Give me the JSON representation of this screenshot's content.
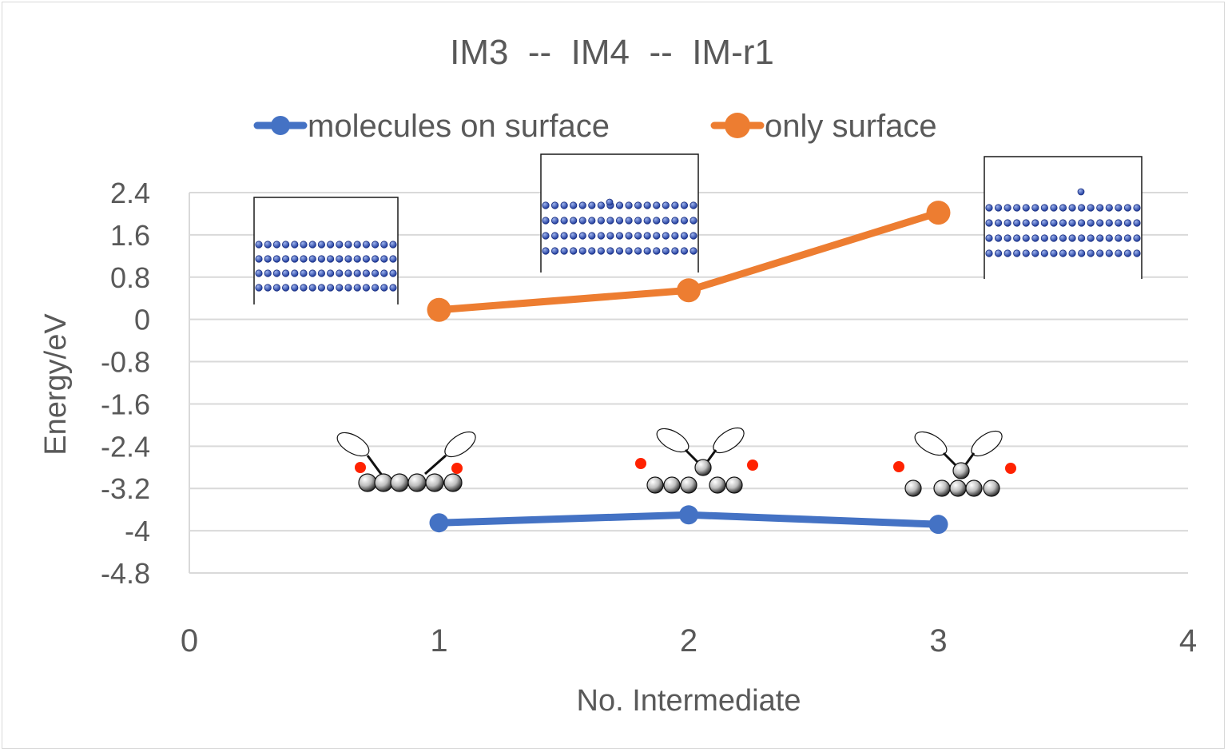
{
  "chart_data": {
    "type": "line",
    "title": "IM3  --  IM4  --  IM-r1",
    "xlabel": "No. Intermediate",
    "ylabel": "Energy/eV",
    "xlim": [
      0,
      4
    ],
    "ylim": [
      -4.8,
      2.4
    ],
    "x_ticks": [
      "0",
      "1",
      "2",
      "3",
      "4"
    ],
    "y_ticks": [
      "2.4",
      "1.6",
      "0.8",
      "0",
      "-0.8",
      "-1.6",
      "-2.4",
      "-3.2",
      "-4",
      "-4.8"
    ],
    "grid": true,
    "legend_position": "top",
    "series": [
      {
        "name": "molecules on surface",
        "color": "#4472c4",
        "x": [
          1,
          2,
          3
        ],
        "y": [
          -3.85,
          -3.7,
          -3.88
        ]
      },
      {
        "name": "only surface",
        "color": "#ed7d31",
        "x": [
          1,
          2,
          3
        ],
        "y": [
          0.18,
          0.55,
          2.02
        ]
      }
    ]
  },
  "colors": {
    "text": "#595959",
    "grid": "#d9d9d9",
    "atom": "#3a5fc4",
    "oxygen": "#ff2200"
  },
  "insets": [
    {
      "name": "surface-slab-im3",
      "icon": "slab-structure"
    },
    {
      "name": "surface-slab-im4",
      "icon": "slab-structure"
    },
    {
      "name": "surface-slab-im-r1",
      "icon": "slab-structure"
    },
    {
      "name": "molecule-im3",
      "icon": "molecule-structure"
    },
    {
      "name": "molecule-im4",
      "icon": "molecule-structure"
    },
    {
      "name": "molecule-im-r1",
      "icon": "molecule-structure"
    }
  ]
}
